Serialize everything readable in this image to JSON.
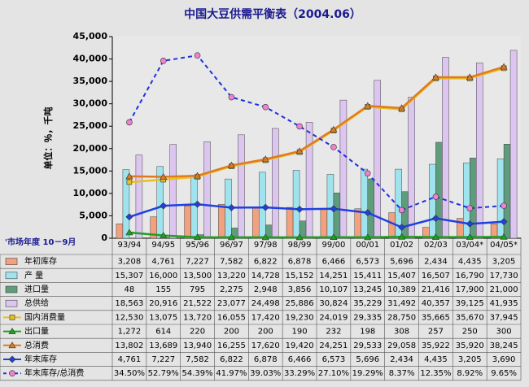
{
  "chart_data": {
    "type": "combo",
    "title": "中国大豆供需平衡表（2004.06）",
    "y_label": "单位：％，千吨",
    "x_label": "'市场年度 10－9月",
    "categories": [
      "93/94",
      "94/95",
      "95/96",
      "96/97",
      "97/98",
      "98/99",
      "99/00",
      "00/01",
      "01/02",
      "02/03",
      "03/04*",
      "04/05*"
    ],
    "ylim": [
      0,
      45000
    ],
    "yticks": [
      0,
      {
        "value": 5000,
        "label": "5,000"
      },
      {
        "value": 10000,
        "label": "10,000"
      },
      {
        "value": 15000,
        "label": "15,000"
      },
      {
        "value": 20000,
        "label": "20,000"
      },
      {
        "value": 25000,
        "label": "25,000"
      },
      {
        "value": 30000,
        "label": "30,000"
      },
      {
        "value": 35000,
        "label": "35,000"
      },
      {
        "value": 40000,
        "label": "40,000"
      },
      {
        "value": 45000,
        "label": "45,000"
      }
    ],
    "y2lim": [
      0,
      60
    ],
    "grid": false,
    "series": [
      {
        "name": "年初库存",
        "type": "bar",
        "color": "#f2a07e",
        "values": [
          3208,
          4761,
          7227,
          7582,
          6822,
          6878,
          6466,
          6573,
          5696,
          2434,
          4435,
          3205
        ],
        "value_labels": [
          "3,208",
          "4,761",
          "7,227",
          "7,582",
          "6,822",
          "6,878",
          "6,466",
          "6,573",
          "5,696",
          "2,434",
          "4,435",
          "3,205"
        ]
      },
      {
        "name": "产 量",
        "type": "bar",
        "color": "#9fe3ef",
        "values": [
          15307,
          16000,
          13500,
          13220,
          14728,
          15152,
          14251,
          15411,
          15407,
          16507,
          16790,
          17730
        ],
        "value_labels": [
          "15,307",
          "16,000",
          "13,500",
          "13,220",
          "14,728",
          "15,152",
          "14,251",
          "15,411",
          "15,407",
          "16,507",
          "16,790",
          "17,730"
        ]
      },
      {
        "name": "进口量",
        "type": "bar",
        "color": "#5e9c7c",
        "values": [
          48,
          155,
          795,
          2275,
          2948,
          3856,
          10107,
          13245,
          10389,
          21416,
          17900,
          21000
        ],
        "value_labels": [
          "48",
          "155",
          "795",
          "2,275",
          "2,948",
          "3,856",
          "10,107",
          "13,245",
          "10,389",
          "21,416",
          "17,900",
          "21,000"
        ]
      },
      {
        "name": "总供给",
        "type": "bar",
        "color": "#dcc6f0",
        "values": [
          18563,
          20916,
          21522,
          23077,
          24498,
          25886,
          30824,
          35229,
          31492,
          40357,
          39125,
          41935
        ],
        "value_labels": [
          "18,563",
          "20,916",
          "21,522",
          "23,077",
          "24,498",
          "25,886",
          "30,824",
          "35,229",
          "31,492",
          "40,357",
          "39,125",
          "41,935"
        ]
      },
      {
        "name": "国内消费量",
        "type": "line",
        "marker": "square",
        "color": "#e8c020",
        "values": [
          12530,
          13075,
          13720,
          16055,
          17420,
          19230,
          24019,
          29335,
          28750,
          35665,
          35670,
          37945
        ],
        "value_labels": [
          "12,530",
          "13,075",
          "13,720",
          "16,055",
          "17,420",
          "19,230",
          "24,019",
          "29,335",
          "28,750",
          "35,665",
          "35,670",
          "37,945"
        ]
      },
      {
        "name": "出口量",
        "type": "line",
        "marker": "triangle",
        "color": "#20a020",
        "values": [
          1272,
          614,
          220,
          200,
          200,
          190,
          232,
          198,
          308,
          257,
          250,
          300
        ],
        "value_labels": [
          "1,272",
          "614",
          "220",
          "200",
          "200",
          "190",
          "232",
          "198",
          "308",
          "257",
          "250",
          "300"
        ]
      },
      {
        "name": "总消费",
        "type": "line",
        "marker": "triangle",
        "color": "#e07a20",
        "values": [
          13802,
          13689,
          13940,
          16255,
          17620,
          19420,
          24251,
          29533,
          29058,
          35922,
          35920,
          38245
        ],
        "value_labels": [
          "13,802",
          "13,689",
          "13,940",
          "16,255",
          "17,620",
          "19,420",
          "24,251",
          "29,533",
          "29,058",
          "35,922",
          "35,920",
          "38,245"
        ]
      },
      {
        "name": "年末库存",
        "type": "line",
        "marker": "diamond",
        "color": "#2040e0",
        "values": [
          4761,
          7227,
          7582,
          6822,
          6878,
          6466,
          6573,
          5696,
          2434,
          4435,
          3205,
          3690
        ],
        "value_labels": [
          "4,761",
          "7,227",
          "7,582",
          "6,822",
          "6,878",
          "6,466",
          "6,573",
          "5,696",
          "2,434",
          "4,435",
          "3,205",
          "3,690"
        ]
      },
      {
        "name": "年末库存/总消费",
        "type": "line",
        "marker": "circle",
        "dash": true,
        "axis": "y2",
        "color": "#2030e0",
        "marker_color": "#f080d0",
        "values": [
          34.5,
          52.79,
          54.39,
          41.97,
          39.03,
          33.29,
          27.1,
          19.29,
          8.37,
          12.35,
          8.92,
          9.65
        ],
        "value_labels": [
          "34.50%",
          "52.79%",
          "54.39%",
          "41.97%",
          "39.03%",
          "33.29%",
          "27.10%",
          "19.29%",
          "8.37%",
          "12.35%",
          "8.92%",
          "9.65%"
        ]
      }
    ]
  }
}
